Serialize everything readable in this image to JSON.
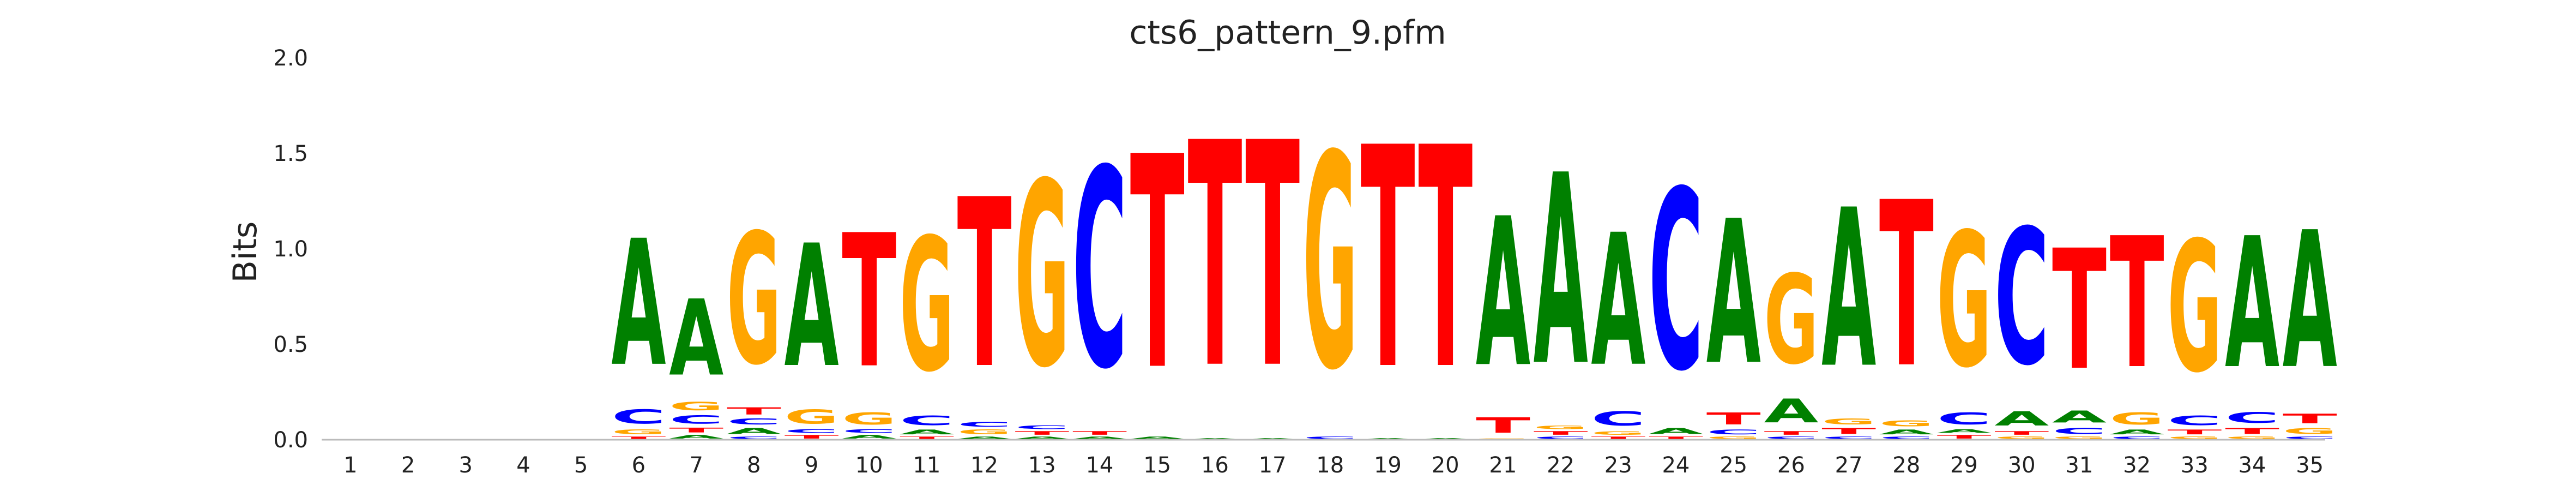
{
  "chart_data": {
    "type": "sequence-logo",
    "title": "cts6_pattern_9.pfm",
    "ylabel": "Bits",
    "xlabel": "",
    "ylim": [
      0,
      2.0
    ],
    "yticks": [
      "0.0",
      "0.5",
      "1.0",
      "1.5",
      "2.0"
    ],
    "grid": false,
    "colors": {
      "A": "#008000",
      "C": "#0000ff",
      "G": "#ffa500",
      "T": "#ff0000"
    },
    "positions": [
      {
        "pos": "1",
        "letters": []
      },
      {
        "pos": "2",
        "letters": []
      },
      {
        "pos": "3",
        "letters": []
      },
      {
        "pos": "4",
        "letters": []
      },
      {
        "pos": "5",
        "letters": []
      },
      {
        "pos": "6",
        "letters": [
          {
            "b": "T",
            "h": 0.02
          },
          {
            "b": "G",
            "h": 0.04
          },
          {
            "b": "C",
            "h": 0.12
          },
          {
            "b": "A",
            "h": 1.06
          }
        ]
      },
      {
        "pos": "7",
        "letters": [
          {
            "b": "A",
            "h": 0.03
          },
          {
            "b": "T",
            "h": 0.04
          },
          {
            "b": "C",
            "h": 0.07
          },
          {
            "b": "G",
            "h": 0.07
          },
          {
            "b": "A",
            "h": 0.64
          }
        ]
      },
      {
        "pos": "8",
        "letters": [
          {
            "b": "C",
            "h": 0.02
          },
          {
            "b": "A",
            "h": 0.05
          },
          {
            "b": "C",
            "h": 0.05
          },
          {
            "b": "T",
            "h": 0.06
          },
          {
            "b": "G",
            "h": 1.1
          }
        ]
      },
      {
        "pos": "9",
        "letters": [
          {
            "b": "T",
            "h": 0.03
          },
          {
            "b": "C",
            "h": 0.03
          },
          {
            "b": "G",
            "h": 0.12
          },
          {
            "b": "A",
            "h": 1.03
          }
        ]
      },
      {
        "pos": "10",
        "letters": [
          {
            "b": "A",
            "h": 0.03
          },
          {
            "b": "C",
            "h": 0.03
          },
          {
            "b": "G",
            "h": 0.1
          },
          {
            "b": "T",
            "h": 1.12
          }
        ]
      },
      {
        "pos": "11",
        "letters": [
          {
            "b": "T",
            "h": 0.02
          },
          {
            "b": "A",
            "h": 0.04
          },
          {
            "b": "C",
            "h": 0.08
          },
          {
            "b": "G",
            "h": 1.12
          }
        ]
      },
      {
        "pos": "12",
        "letters": [
          {
            "b": "A",
            "h": 0.02
          },
          {
            "b": "G",
            "h": 0.04
          },
          {
            "b": "C",
            "h": 0.04
          },
          {
            "b": "T",
            "h": 1.42
          }
        ]
      },
      {
        "pos": "13",
        "letters": [
          {
            "b": "A",
            "h": 0.02
          },
          {
            "b": "T",
            "h": 0.03
          },
          {
            "b": "C",
            "h": 0.03
          },
          {
            "b": "G",
            "h": 1.55
          }
        ]
      },
      {
        "pos": "14",
        "letters": [
          {
            "b": "A",
            "h": 0.02
          },
          {
            "b": "T",
            "h": 0.03
          },
          {
            "b": "C",
            "h": 1.67
          }
        ]
      },
      {
        "pos": "15",
        "letters": [
          {
            "b": "A",
            "h": 0.02
          },
          {
            "b": "T",
            "h": 1.79
          }
        ]
      },
      {
        "pos": "16",
        "letters": [
          {
            "b": "A",
            "h": 0.01
          },
          {
            "b": "T",
            "h": 1.89
          }
        ]
      },
      {
        "pos": "17",
        "letters": [
          {
            "b": "A",
            "h": 0.01
          },
          {
            "b": "T",
            "h": 1.89
          }
        ]
      },
      {
        "pos": "18",
        "letters": [
          {
            "b": "C",
            "h": 0.02
          },
          {
            "b": "G",
            "h": 1.8
          }
        ]
      },
      {
        "pos": "19",
        "letters": [
          {
            "b": "A",
            "h": 0.01
          },
          {
            "b": "T",
            "h": 1.86
          }
        ]
      },
      {
        "pos": "20",
        "letters": [
          {
            "b": "A",
            "h": 0.01
          },
          {
            "b": "T",
            "h": 1.86
          }
        ]
      },
      {
        "pos": "21",
        "letters": [
          {
            "b": "G",
            "h": 0.01
          },
          {
            "b": "T",
            "h": 0.13
          },
          {
            "b": "A",
            "h": 1.25
          }
        ]
      },
      {
        "pos": "22",
        "letters": [
          {
            "b": "C",
            "h": 0.02
          },
          {
            "b": "T",
            "h": 0.03
          },
          {
            "b": "G",
            "h": 0.03
          },
          {
            "b": "A",
            "h": 1.6
          }
        ]
      },
      {
        "pos": "23",
        "letters": [
          {
            "b": "T",
            "h": 0.02
          },
          {
            "b": "G",
            "h": 0.03
          },
          {
            "b": "C",
            "h": 0.12
          },
          {
            "b": "A",
            "h": 1.11
          }
        ]
      },
      {
        "pos": "24",
        "letters": [
          {
            "b": "T",
            "h": 0.02
          },
          {
            "b": "A",
            "h": 0.05
          },
          {
            "b": "C",
            "h": 1.51
          }
        ]
      },
      {
        "pos": "25",
        "letters": [
          {
            "b": "G",
            "h": 0.02
          },
          {
            "b": "C",
            "h": 0.04
          },
          {
            "b": "T",
            "h": 0.1
          },
          {
            "b": "A",
            "h": 1.21
          }
        ]
      },
      {
        "pos": "26",
        "letters": [
          {
            "b": "C",
            "h": 0.02
          },
          {
            "b": "T",
            "h": 0.03
          },
          {
            "b": "A",
            "h": 0.2
          },
          {
            "b": "G",
            "h": 0.75
          }
        ]
      },
      {
        "pos": "27",
        "letters": [
          {
            "b": "C",
            "h": 0.02
          },
          {
            "b": "T",
            "h": 0.05
          },
          {
            "b": "G",
            "h": 0.05
          },
          {
            "b": "A",
            "h": 1.33
          }
        ]
      },
      {
        "pos": "28",
        "letters": [
          {
            "b": "C",
            "h": 0.02
          },
          {
            "b": "A",
            "h": 0.04
          },
          {
            "b": "G",
            "h": 0.05
          },
          {
            "b": "T",
            "h": 1.39
          }
        ]
      },
      {
        "pos": "29",
        "letters": [
          {
            "b": "T",
            "h": 0.03
          },
          {
            "b": "A",
            "h": 0.03
          },
          {
            "b": "C",
            "h": 0.1
          },
          {
            "b": "G",
            "h": 1.13
          }
        ]
      },
      {
        "pos": "30",
        "letters": [
          {
            "b": "G",
            "h": 0.02
          },
          {
            "b": "T",
            "h": 0.03
          },
          {
            "b": "A",
            "h": 0.12
          },
          {
            "b": "C",
            "h": 1.14
          }
        ]
      },
      {
        "pos": "31",
        "letters": [
          {
            "b": "G",
            "h": 0.02
          },
          {
            "b": "C",
            "h": 0.05
          },
          {
            "b": "A",
            "h": 0.1
          },
          {
            "b": "T",
            "h": 1.01
          }
        ]
      },
      {
        "pos": "32",
        "letters": [
          {
            "b": "C",
            "h": 0.02
          },
          {
            "b": "A",
            "h": 0.04
          },
          {
            "b": "G",
            "h": 0.1
          },
          {
            "b": "T",
            "h": 1.1
          }
        ]
      },
      {
        "pos": "33",
        "letters": [
          {
            "b": "G",
            "h": 0.02
          },
          {
            "b": "T",
            "h": 0.04
          },
          {
            "b": "C",
            "h": 0.08
          },
          {
            "b": "G",
            "h": 1.1
          }
        ]
      },
      {
        "pos": "34",
        "letters": [
          {
            "b": "G",
            "h": 0.02
          },
          {
            "b": "T",
            "h": 0.05
          },
          {
            "b": "C",
            "h": 0.09
          },
          {
            "b": "A",
            "h": 1.1
          }
        ]
      },
      {
        "pos": "35",
        "letters": [
          {
            "b": "C",
            "h": 0.02
          },
          {
            "b": "G",
            "h": 0.05
          },
          {
            "b": "T",
            "h": 0.08
          },
          {
            "b": "A",
            "h": 1.15
          }
        ]
      }
    ]
  }
}
